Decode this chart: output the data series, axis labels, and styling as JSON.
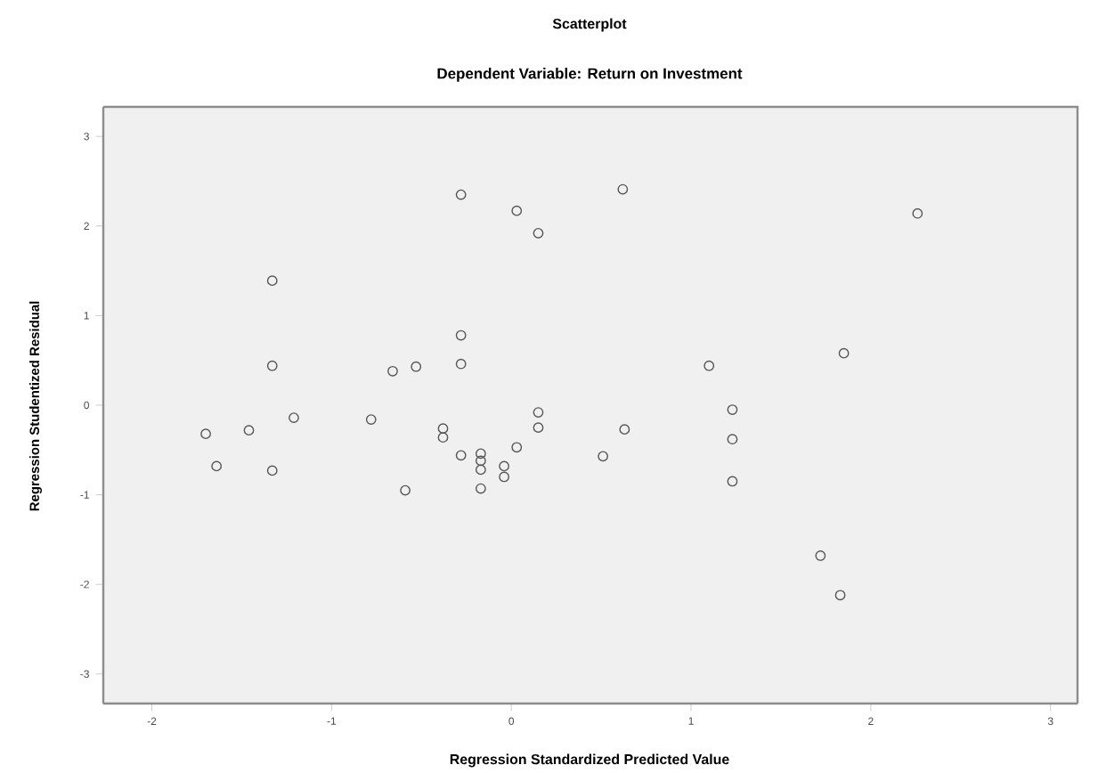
{
  "chart_data": {
    "type": "scatter",
    "title": "Scatterplot",
    "subtitle": "Dependent Variable: Return on Investment",
    "xlabel": "Regression Standardized Predicted Value",
    "ylabel": "Regression Studentized Residual",
    "x": [
      -1.33,
      -0.28,
      0.03,
      0.15,
      -1.33,
      -0.66,
      -0.53,
      -0.28,
      -0.28,
      0.62,
      2.26,
      1.1,
      1.85,
      -1.7,
      -1.64,
      -1.46,
      -1.33,
      -1.21,
      -0.78,
      -0.59,
      -0.38,
      -0.38,
      -0.28,
      -0.17,
      -0.17,
      -0.17,
      -0.17,
      -0.04,
      -0.04,
      0.03,
      0.15,
      0.15,
      0.51,
      0.63,
      1.23,
      1.23,
      1.23,
      1.72,
      1.83
    ],
    "values": [
      1.39,
      2.35,
      2.17,
      1.92,
      0.44,
      0.38,
      0.43,
      0.78,
      0.46,
      2.41,
      2.14,
      0.44,
      0.58,
      -0.32,
      -0.68,
      -0.28,
      -0.73,
      -0.14,
      -0.16,
      -0.95,
      -0.26,
      -0.36,
      -0.56,
      -0.54,
      -0.62,
      -0.72,
      -0.93,
      -0.68,
      -0.8,
      -0.47,
      -0.08,
      -0.25,
      -0.57,
      -0.27,
      -0.05,
      -0.38,
      -0.85,
      -1.68,
      -2.12
    ],
    "color": "#555555",
    "marker": "circle",
    "xlim": [
      -2.27,
      3.15
    ],
    "ylim": [
      -3.33,
      3.33
    ],
    "xticks": [
      -2,
      -1,
      0,
      1,
      2,
      3
    ],
    "yticks": [
      -3,
      -2,
      -1,
      0,
      1,
      2,
      3
    ],
    "grid": false
  }
}
